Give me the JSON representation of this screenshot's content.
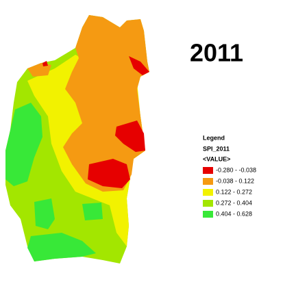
{
  "title": "2011",
  "legend": {
    "title": "Legend",
    "layer": "SPI_2011",
    "field": "<VALUE>",
    "classes": [
      {
        "label": "-0.280 - -0.038",
        "color": "#e60000"
      },
      {
        "label": "-0.038 - 0.122",
        "color": "#f59a12"
      },
      {
        "label": "0.122 - 0.272",
        "color": "#f2f200"
      },
      {
        "label": "0.272 - 0.404",
        "color": "#a3e600"
      },
      {
        "label": "0.404 - 0.628",
        "color": "#38e838"
      }
    ]
  }
}
